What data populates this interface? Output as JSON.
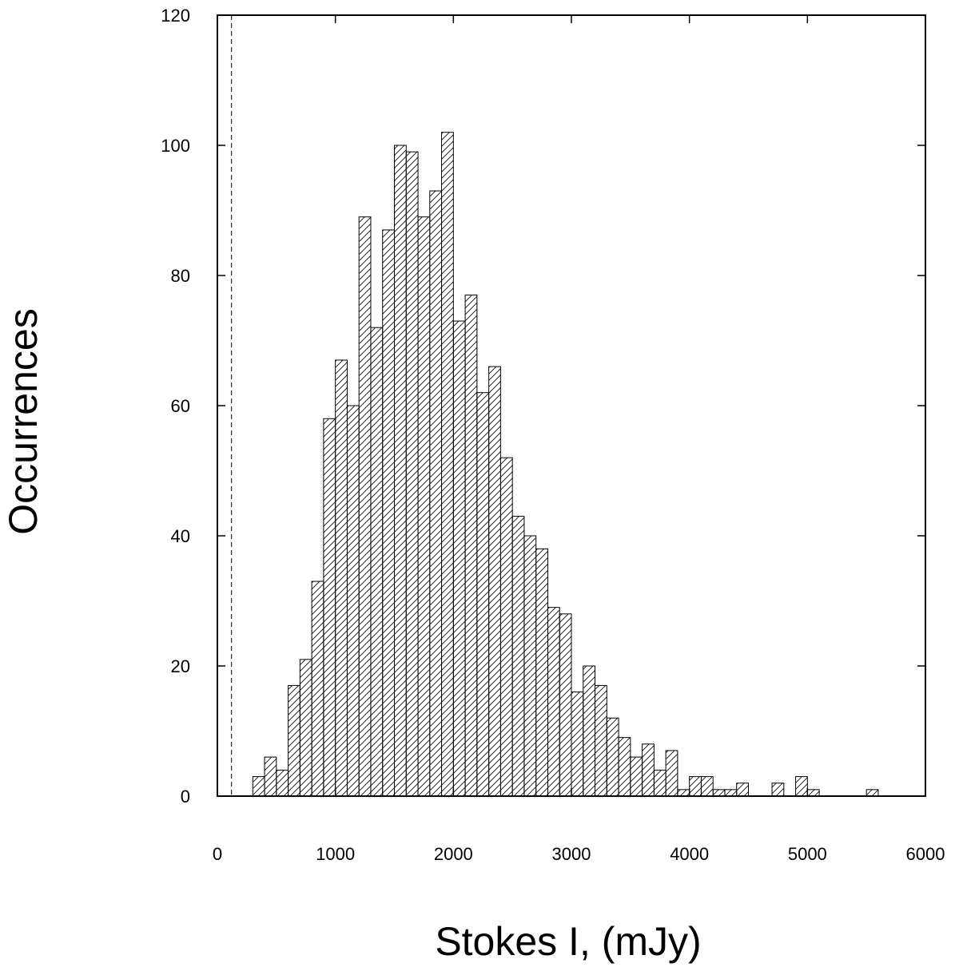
{
  "chart_data": {
    "type": "bar",
    "subtype": "histogram",
    "title": "",
    "xlabel": "Stokes I, (mJy)",
    "ylabel": "Occurrences",
    "xlim": [
      0,
      6000
    ],
    "ylim": [
      0,
      120
    ],
    "xticks": [
      0,
      1000,
      2000,
      3000,
      4000,
      5000,
      6000
    ],
    "yticks": [
      0,
      20,
      40,
      60,
      80,
      100,
      120
    ],
    "grid": false,
    "legend": "none",
    "bar_fill": "diagonal-hatch",
    "bin_width": 100,
    "bin_starts": [
      300,
      400,
      500,
      600,
      700,
      800,
      900,
      1000,
      1100,
      1200,
      1300,
      1400,
      1500,
      1600,
      1700,
      1800,
      1900,
      2000,
      2100,
      2200,
      2300,
      2400,
      2500,
      2600,
      2700,
      2800,
      2900,
      3000,
      3100,
      3200,
      3300,
      3400,
      3500,
      3600,
      3700,
      3800,
      3900,
      4000,
      4100,
      4200,
      4300,
      4400,
      4500,
      4600,
      4700,
      4800,
      4900,
      5000,
      5100,
      5200,
      5300,
      5400,
      5500
    ],
    "values": [
      3,
      6,
      4,
      17,
      21,
      33,
      58,
      67,
      60,
      89,
      72,
      87,
      100,
      99,
      89,
      93,
      102,
      73,
      77,
      62,
      66,
      52,
      43,
      40,
      38,
      29,
      28,
      16,
      20,
      17,
      12,
      9,
      6,
      8,
      4,
      7,
      1,
      3,
      3,
      1,
      1,
      2,
      0,
      0,
      2,
      0,
      3,
      1,
      0,
      0,
      0,
      0,
      1
    ],
    "reference_line": {
      "x": 120,
      "style": "dashed"
    }
  }
}
